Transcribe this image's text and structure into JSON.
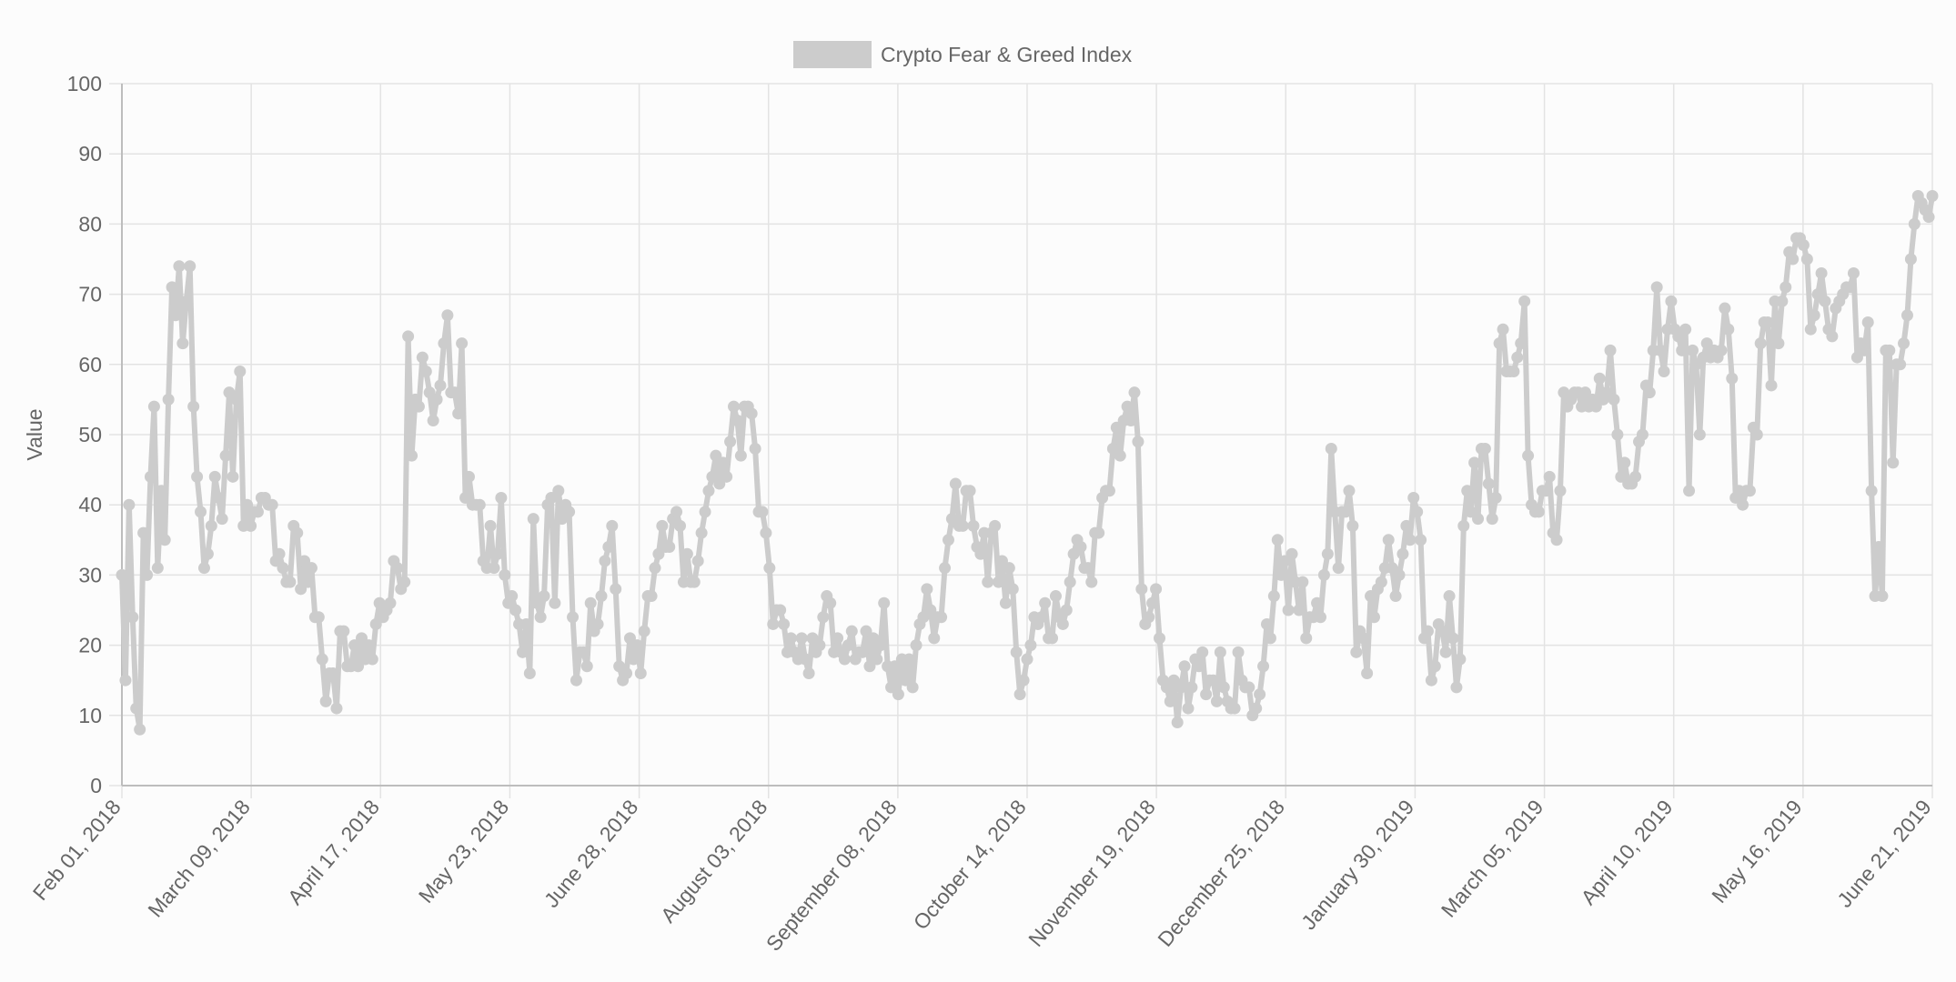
{
  "chart_data": {
    "type": "line",
    "title": "",
    "ylabel": "Value",
    "xlabel": "",
    "ylim": [
      0,
      100
    ],
    "y_ticks": [
      "0",
      "10",
      "20",
      "30",
      "40",
      "50",
      "60",
      "70",
      "80",
      "90",
      "100"
    ],
    "x_ticks": [
      "Feb 01, 2018",
      "March 09, 2018",
      "April 17, 2018",
      "May 23, 2018",
      "June 28, 2018",
      "August 03, 2018",
      "September 08, 2018",
      "October 14, 2018",
      "November 19, 2018",
      "December 25, 2018",
      "January 30, 2019",
      "March 05, 2019",
      "April 10, 2019",
      "May 16, 2019",
      "June 21, 2019"
    ],
    "grid": true,
    "legend_position": "top-center",
    "color": "#cccccc",
    "series": [
      {
        "name": "Crypto Fear & Greed Index",
        "x_start": "Feb 01, 2018",
        "x_end": "June 21, 2019",
        "values": [
          30,
          15,
          40,
          24,
          11,
          8,
          36,
          30,
          44,
          54,
          31,
          42,
          35,
          55,
          71,
          67,
          74,
          63,
          69,
          74,
          54,
          44,
          39,
          31,
          33,
          37,
          44,
          41,
          38,
          47,
          56,
          44,
          55,
          59,
          37,
          40,
          37,
          39,
          39,
          41,
          41,
          40,
          40,
          32,
          33,
          31,
          29,
          29,
          37,
          36,
          28,
          32,
          29,
          31,
          24,
          24,
          18,
          12,
          16,
          16,
          11,
          22,
          22,
          17,
          17,
          20,
          17,
          21,
          18,
          20,
          18,
          23,
          26,
          24,
          25,
          26,
          32,
          31,
          28,
          29,
          64,
          47,
          55,
          54,
          61,
          59,
          56,
          52,
          55,
          57,
          63,
          67,
          56,
          56,
          53,
          63,
          41,
          44,
          40,
          40,
          40,
          32,
          31,
          37,
          31,
          33,
          41,
          30,
          26,
          27,
          25,
          23,
          19,
          23,
          16,
          38,
          26,
          24,
          27,
          40,
          41,
          26,
          42,
          38,
          40,
          39,
          24,
          15,
          19,
          19,
          17,
          26,
          22,
          23,
          27,
          32,
          34,
          37,
          28,
          17,
          15,
          16,
          21,
          18,
          20,
          16,
          22,
          27,
          27,
          31,
          33,
          37,
          34,
          34,
          38,
          39,
          37,
          29,
          33,
          29,
          29,
          32,
          36,
          39,
          42,
          44,
          47,
          43,
          46,
          44,
          49,
          54,
          52,
          47,
          54,
          54,
          53,
          48,
          39,
          39,
          36,
          31,
          23,
          25,
          25,
          23,
          19,
          21,
          19,
          18,
          21,
          18,
          16,
          21,
          19,
          20,
          24,
          27,
          26,
          19,
          21,
          19,
          18,
          20,
          22,
          18,
          19,
          19,
          22,
          17,
          21,
          18,
          20,
          26,
          17,
          14,
          17,
          13,
          18,
          15,
          18,
          14,
          20,
          23,
          24,
          28,
          25,
          21,
          24,
          24,
          31,
          35,
          38,
          43,
          37,
          37,
          42,
          42,
          37,
          34,
          33,
          36,
          29,
          36,
          37,
          29,
          32,
          26,
          31,
          28,
          19,
          13,
          15,
          18,
          20,
          24,
          23,
          24,
          26,
          21,
          21,
          27,
          24,
          23,
          25,
          29,
          33,
          35,
          34,
          31,
          31,
          29,
          36,
          36,
          41,
          42,
          42,
          48,
          51,
          47,
          52,
          54,
          52,
          56,
          49,
          28,
          23,
          24,
          26,
          28,
          21,
          15,
          14,
          12,
          15,
          9,
          14,
          17,
          11,
          14,
          18,
          17,
          19,
          13,
          15,
          15,
          12,
          19,
          14,
          12,
          11,
          11,
          19,
          15,
          14,
          14,
          10,
          11,
          13,
          17,
          23,
          21,
          27,
          35,
          30,
          32,
          25,
          33,
          29,
          25,
          29,
          21,
          24,
          24,
          26,
          24,
          30,
          33,
          48,
          39,
          31,
          39,
          39,
          42,
          37,
          19,
          22,
          21,
          16,
          27,
          24,
          28,
          29,
          31,
          35,
          31,
          27,
          30,
          33,
          37,
          35,
          41,
          39,
          35,
          21,
          22,
          15,
          17,
          23,
          22,
          19,
          27,
          21,
          14,
          18,
          37,
          42,
          39,
          46,
          38,
          48,
          48,
          43,
          38,
          41,
          63,
          65,
          59,
          59,
          59,
          61,
          63,
          69,
          47,
          40,
          39,
          39,
          42,
          42,
          44,
          36,
          35,
          42,
          56,
          54,
          55,
          56,
          56,
          54,
          56,
          54,
          55,
          54,
          58,
          55,
          56,
          62,
          55,
          50,
          44,
          46,
          43,
          43,
          44,
          49,
          50,
          57,
          56,
          62,
          71,
          62,
          59,
          65,
          69,
          65,
          64,
          62,
          65,
          42,
          62,
          60,
          50,
          61,
          63,
          61,
          62,
          61,
          62,
          68,
          65,
          58,
          41,
          42,
          40,
          42,
          42,
          51,
          50,
          63,
          66,
          66,
          57,
          69,
          63,
          69,
          71,
          76,
          75,
          78,
          78,
          77,
          75,
          65,
          67,
          70,
          73,
          69,
          65,
          64,
          68,
          69,
          70,
          71,
          71,
          73,
          61,
          63,
          62,
          66,
          42,
          27,
          34,
          27,
          62,
          62,
          46,
          60,
          60,
          63,
          67,
          75,
          80,
          84,
          83,
          82,
          81,
          84
        ]
      }
    ]
  }
}
